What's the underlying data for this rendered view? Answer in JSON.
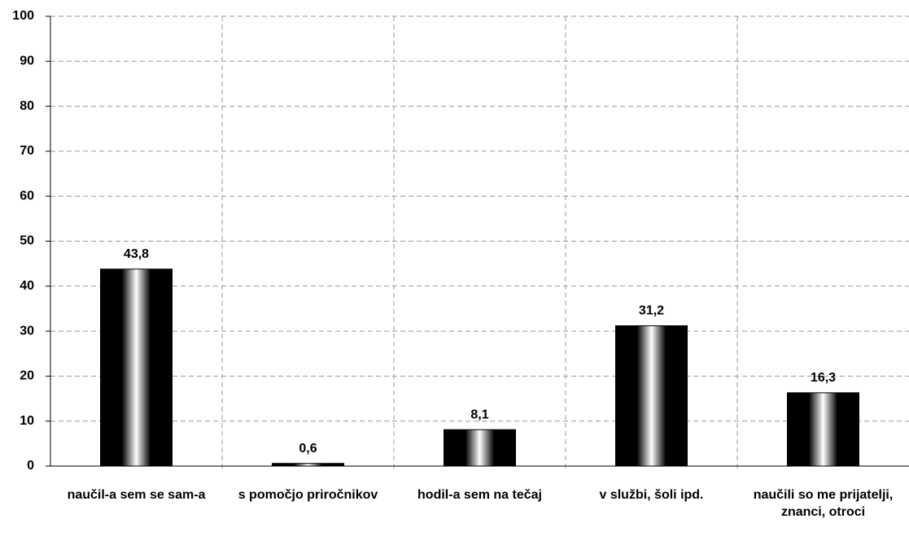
{
  "chart_data": {
    "type": "bar",
    "categories": [
      "naučil-a sem se sam-a",
      "s pomočjo priročnikov",
      "hodil-a sem na tečaj",
      "v službi, šoli ipd.",
      "naučili so me prijatelji, znanci, otroci"
    ],
    "values": [
      43.8,
      0.6,
      8.1,
      31.2,
      16.3
    ],
    "value_labels": [
      "43,8",
      "0,6",
      "8,1",
      "31,2",
      "16,3"
    ],
    "color": "#000000",
    "ylim": [
      0,
      100
    ],
    "yticks": [
      0,
      10,
      20,
      30,
      40,
      50,
      60,
      70,
      80,
      90,
      100
    ],
    "grid": true
  }
}
